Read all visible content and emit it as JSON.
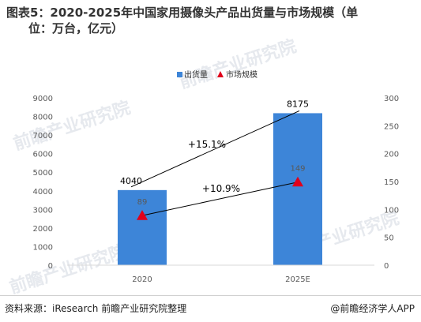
{
  "title_line1": "图表5：2020-2025年中国家用摄像头产品出货量与市场规模（单",
  "title_line2": "位：万台，亿元）",
  "footer": {
    "source": "资料来源：iResearch 前瞻产业研究院整理",
    "brand": "@前瞻经济学人APP"
  },
  "watermark": "前瞻产业研究院",
  "colors": {
    "bar": "#3d85d8",
    "marker": "#e0001b",
    "axis": "#d9d9d9",
    "text": "#595959"
  },
  "chart_data": {
    "type": "bar",
    "categories": [
      "2020",
      "2025E"
    ],
    "series": [
      {
        "name": "出货量",
        "type": "bar",
        "axis": "left",
        "values": [
          4040,
          8175
        ],
        "labels": [
          "4040",
          "8175"
        ]
      },
      {
        "name": "市场规模",
        "type": "marker",
        "axis": "right",
        "values": [
          89,
          149
        ],
        "labels": [
          "89",
          "149"
        ]
      }
    ],
    "y_left": {
      "min": 0,
      "max": 9000,
      "ticks": [
        "0",
        "1000",
        "2000",
        "3000",
        "4000",
        "5000",
        "6000",
        "7000",
        "8000",
        "9000"
      ]
    },
    "y_right": {
      "min": 0,
      "max": 300,
      "ticks": [
        "0",
        "50",
        "100",
        "150",
        "200",
        "250",
        "300"
      ]
    },
    "annotations": [
      "+15.1%",
      "+10.9%"
    ],
    "legend_position": "top-right",
    "grid": false
  }
}
